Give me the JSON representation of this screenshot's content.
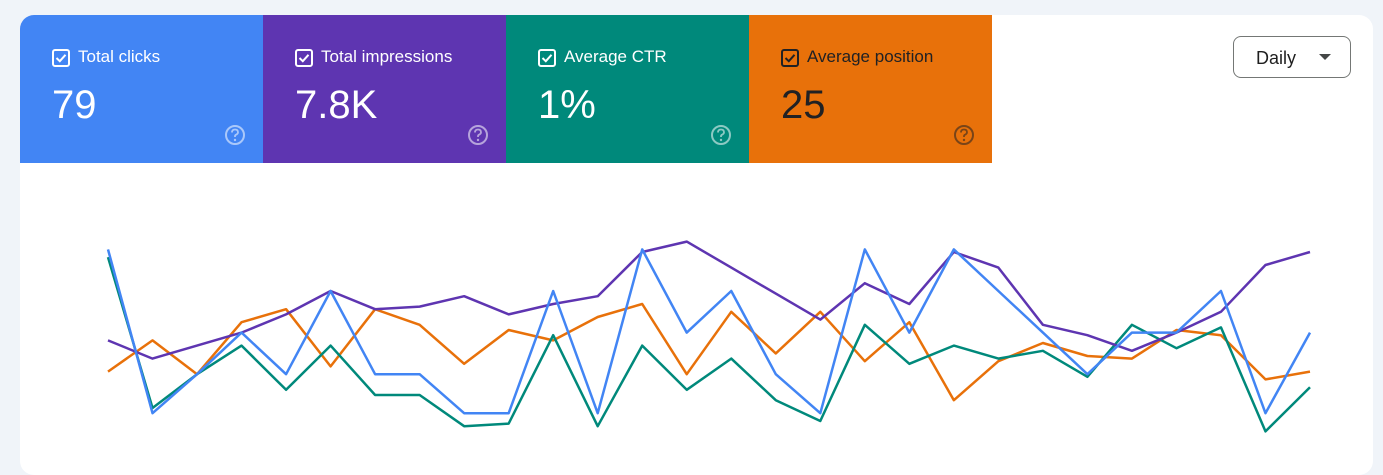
{
  "chart_data": {
    "type": "line",
    "ylim": [
      0,
      100
    ],
    "dropdown": "Daily",
    "series": [
      {
        "name": "Total clicks",
        "total": "79",
        "color": "#4285f4",
        "text_color": "#ffffff",
        "values": [
          81,
          18,
          33,
          49,
          33,
          65,
          33,
          33,
          18,
          18,
          65,
          18,
          81,
          49,
          65,
          33,
          18,
          81,
          49,
          81,
          65,
          49,
          33,
          49,
          49,
          65,
          18,
          49
        ]
      },
      {
        "name": "Total impressions",
        "total": "7.8K",
        "color": "#5e35b1",
        "text_color": "#ffffff",
        "values": [
          46,
          39,
          44,
          49,
          56,
          65,
          58,
          59,
          63,
          56,
          60,
          63,
          80,
          84,
          74,
          64,
          54,
          68,
          60,
          80,
          74,
          52,
          48,
          42,
          49,
          57,
          75,
          80
        ]
      },
      {
        "name": "Average CTR",
        "total": "1%",
        "color": "#00897b",
        "text_color": "#ffffff",
        "values": [
          78,
          20,
          33,
          44,
          27,
          44,
          25,
          25,
          13,
          14,
          48,
          13,
          44,
          27,
          39,
          23,
          15,
          52,
          37,
          44,
          39,
          42,
          32,
          52,
          43,
          51,
          11,
          28
        ]
      },
      {
        "name": "Average position",
        "total": "25",
        "color": "#e8710a",
        "text_color": "#202124",
        "values": [
          34,
          46,
          33,
          53,
          58,
          36,
          58,
          52,
          37,
          50,
          46,
          55,
          60,
          33,
          57,
          41,
          57,
          38,
          53,
          23,
          38,
          45,
          40,
          39,
          50,
          48,
          31,
          34
        ]
      }
    ]
  }
}
